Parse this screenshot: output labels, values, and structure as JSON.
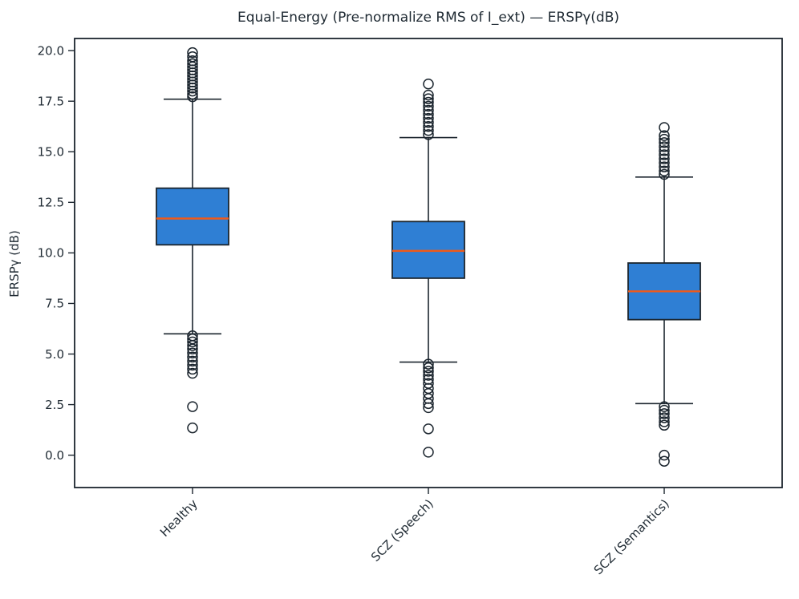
{
  "title": "Equal-Energy (Pre-normalize RMS of I_ext) — ERSPγ(dB)",
  "chart_data": {
    "type": "boxplot",
    "title": "Equal-Energy (Pre-normalize RMS of I_ext) — ERSPγ(dB)",
    "ylabel": "ERSPγ (dB)",
    "xlabel": "",
    "ylim": [
      -1.6,
      20.6
    ],
    "yticks": [
      "0.0",
      "2.5",
      "5.0",
      "7.5",
      "10.0",
      "12.5",
      "15.0",
      "17.5",
      "20.0"
    ],
    "grid": false,
    "legend": "none",
    "x_tick_rotation": 45,
    "categories": [
      "Healthy",
      "SCZ (Speech)",
      "SCZ (Semantics)"
    ],
    "boxes": [
      {
        "label": "Healthy",
        "q1": 10.4,
        "median": 11.7,
        "q3": 13.2,
        "whisker_low": 6.0,
        "whisker_high": 17.6,
        "outliers_high": [
          19.9,
          19.7,
          19.5,
          19.35,
          19.2,
          19.05,
          18.9,
          18.75,
          18.6,
          18.45,
          18.3,
          18.15,
          18.0,
          17.85,
          17.72
        ],
        "outliers_low": [
          5.9,
          5.75,
          5.6,
          5.42,
          5.25,
          5.05,
          4.85,
          4.65,
          4.45,
          4.25,
          4.05,
          2.4,
          1.35
        ]
      },
      {
        "label": "SCZ (Speech)",
        "q1": 8.75,
        "median": 10.1,
        "q3": 11.55,
        "whisker_low": 4.6,
        "whisker_high": 15.7,
        "outliers_high": [
          18.35,
          17.8,
          17.62,
          17.45,
          17.25,
          17.05,
          16.85,
          16.65,
          16.45,
          16.25,
          16.05,
          15.85
        ],
        "outliers_low": [
          4.5,
          4.32,
          4.15,
          3.95,
          3.75,
          3.55,
          3.3,
          3.05,
          2.8,
          2.55,
          2.35,
          1.3,
          0.15
        ]
      },
      {
        "label": "SCZ (Semantics)",
        "q1": 6.7,
        "median": 8.1,
        "q3": 9.5,
        "whisker_low": 2.55,
        "whisker_high": 13.75,
        "outliers_high": [
          16.2,
          15.8,
          15.62,
          15.45,
          15.25,
          15.05,
          14.85,
          14.65,
          14.45,
          14.25,
          14.05,
          13.88
        ],
        "outliers_low": [
          2.4,
          2.22,
          2.05,
          1.85,
          1.65,
          1.48,
          0.0,
          -0.3
        ]
      }
    ],
    "colors": {
      "box_fill": "#2f7fd4",
      "median": "#ef5a1a",
      "line": "#1b252e",
      "text": "#1f2a33",
      "background": "#ffffff"
    }
  }
}
